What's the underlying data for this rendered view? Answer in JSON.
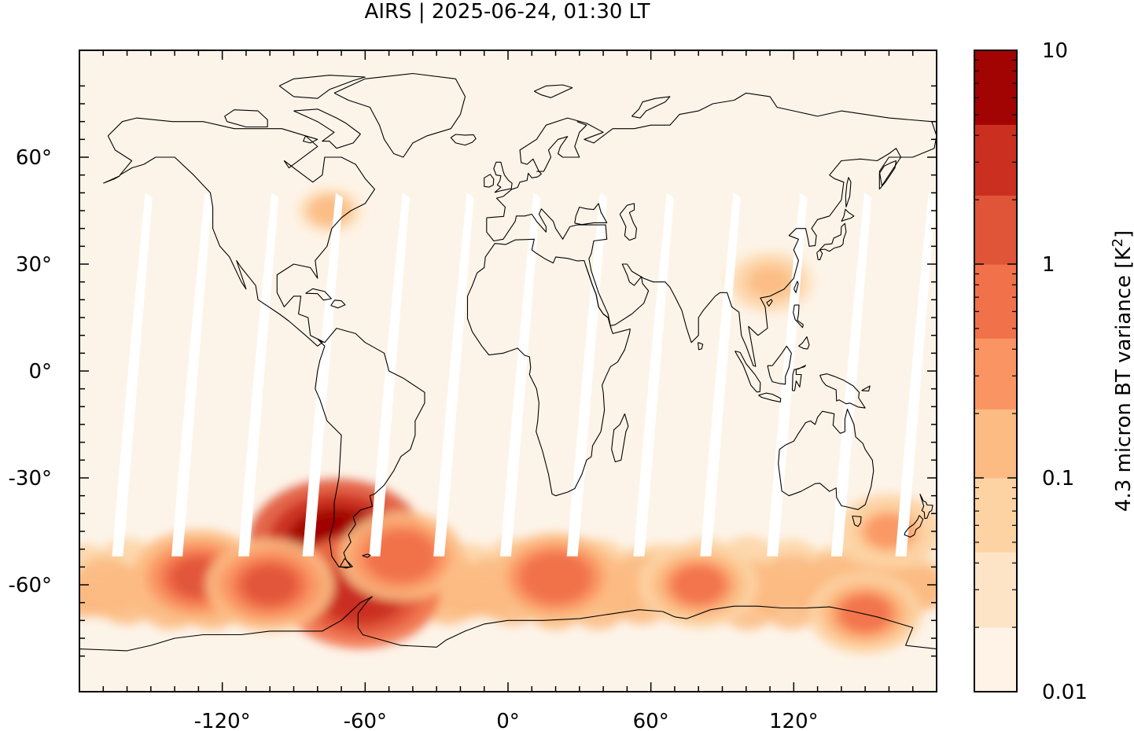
{
  "title": "AIRS | 2025-06-24, 01:30 LT",
  "map": {
    "projection": "equirectangular",
    "lon_range": [
      -180,
      180
    ],
    "lat_range": [
      -90,
      90
    ],
    "lon_ticks": [
      {
        "value": -120,
        "label": "-120°"
      },
      {
        "value": -60,
        "label": "-60°"
      },
      {
        "value": 0,
        "label": "0°"
      },
      {
        "value": 60,
        "label": "60°"
      },
      {
        "value": 120,
        "label": "120°"
      }
    ],
    "lat_ticks": [
      {
        "value": 60,
        "label": "60°"
      },
      {
        "value": 30,
        "label": "30°"
      },
      {
        "value": 0,
        "label": "0°"
      },
      {
        "value": -30,
        "label": "-30°"
      },
      {
        "value": -60,
        "label": "-60°"
      }
    ],
    "background_color": "#fdf4e9",
    "coastline_color": "#000000",
    "no_data_color": "#ffffff"
  },
  "colorbar": {
    "label": "4.3 micron BT variance [K²]",
    "label_parts": {
      "base": "4.3 micron BT variance [K",
      "sup": "2",
      "end": "]"
    },
    "scale": "log",
    "range": [
      0.01,
      10
    ],
    "tick_labels": [
      {
        "value": 10,
        "label": "10"
      },
      {
        "value": 1,
        "label": "1"
      },
      {
        "value": 0.1,
        "label": "0.1"
      },
      {
        "value": 0.01,
        "label": "0.01"
      }
    ],
    "levels": [
      0.02,
      0.045,
      0.1,
      0.21,
      0.45,
      1,
      2.1,
      4.5,
      10
    ],
    "colors": [
      "#fef3e6",
      "#fde4c6",
      "#fdd3a4",
      "#fcbb83",
      "#fa9563",
      "#f1714a",
      "#e05438",
      "#ca2f20",
      "#a10403"
    ]
  },
  "chart_data": {
    "type": "heatmap",
    "variable": "4.3 micron BT variance",
    "units": "K²",
    "hotspots": [
      {
        "region": "southern Patagonia",
        "lon": -72,
        "lat": -48,
        "value": 10
      },
      {
        "region": "Drake Passage / Antarctic Peninsula",
        "lon": -62,
        "lat": -62,
        "value": 4.5
      },
      {
        "region": "Southern Ocean Pacific sector",
        "lon": -130,
        "lat": -58,
        "value": 1.5
      },
      {
        "region": "South Pacific",
        "lon": -100,
        "lat": -60,
        "value": 1.2
      },
      {
        "region": "South Atlantic",
        "lon": -45,
        "lat": -52,
        "value": 1
      },
      {
        "region": "Southern Ocean Indian sector",
        "lon": 20,
        "lat": -58,
        "value": 1
      },
      {
        "region": "Southern Ocean Indian sector",
        "lon": 80,
        "lat": -60,
        "value": 0.8
      },
      {
        "region": "East Antarctic coast",
        "lon": 150,
        "lat": -68,
        "value": 0.6
      },
      {
        "region": "Tasmania / New Zealand",
        "lon": 160,
        "lat": -45,
        "value": 0.4
      },
      {
        "region": "Southern China",
        "lon": 110,
        "lat": 25,
        "value": 0.2
      },
      {
        "region": "Eastern USA",
        "lon": -75,
        "lat": 45,
        "value": 0.15
      }
    ]
  }
}
